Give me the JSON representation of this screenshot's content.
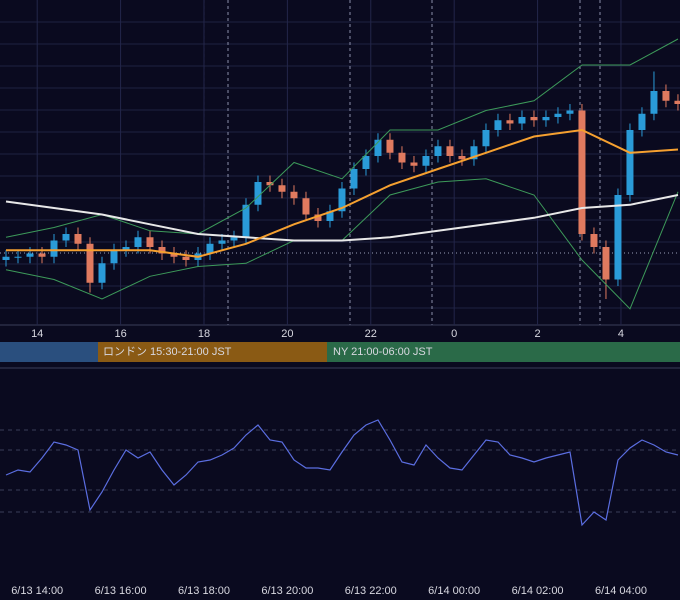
{
  "chart_data": [
    {
      "type": "candlestick",
      "up_color": "#2a9bd8",
      "down_color": "#e07a5f",
      "xlim": [
        -0.5,
        56.17
      ],
      "ylim": [
        0,
        100
      ],
      "xticks": [
        {
          "value": 2.6,
          "label": "14"
        },
        {
          "value": 9.55,
          "label": "16"
        },
        {
          "value": 16.5,
          "label": "18"
        },
        {
          "value": 23.45,
          "label": "20"
        },
        {
          "value": 30.4,
          "label": "22"
        },
        {
          "value": 37.35,
          "label": "0"
        },
        {
          "value": 44.3,
          "label": "2"
        },
        {
          "value": 51.25,
          "label": "4"
        }
      ],
      "open": [
        20,
        21,
        21,
        22,
        21,
        26,
        28,
        25,
        13,
        19,
        23,
        24,
        27,
        24,
        22,
        21,
        20,
        22,
        25,
        26,
        27,
        37,
        44,
        43,
        41,
        39,
        34,
        32,
        35,
        42,
        48,
        52,
        57,
        53,
        50,
        49,
        52,
        55,
        52,
        51,
        55,
        60,
        63,
        62,
        64,
        63,
        64,
        65,
        66,
        28,
        24,
        14,
        40,
        60,
        65,
        72,
        69
      ],
      "high": [
        23,
        23,
        24,
        24,
        28,
        30,
        30,
        27,
        21,
        25,
        26,
        29,
        29,
        26,
        24,
        23,
        24,
        27,
        28,
        29,
        39,
        46,
        46,
        45,
        43,
        41,
        36,
        37,
        44,
        50,
        54,
        59,
        59,
        55,
        52,
        54,
        57,
        57,
        54,
        57,
        62,
        65,
        65,
        66,
        66,
        66,
        67,
        68,
        68,
        30,
        26,
        42,
        62,
        67,
        78,
        74,
        71
      ],
      "low": [
        18,
        19,
        19,
        19,
        19,
        24,
        23,
        10,
        11,
        17,
        21,
        22,
        22,
        20,
        19,
        18,
        18,
        20,
        23,
        24,
        25,
        35,
        41,
        39,
        37,
        32,
        30,
        30,
        33,
        40,
        46,
        50,
        51,
        48,
        47,
        47,
        50,
        50,
        49,
        49,
        53,
        58,
        60,
        60,
        61,
        61,
        62,
        63,
        26,
        22,
        8,
        12,
        38,
        58,
        63,
        67,
        66
      ],
      "close": [
        21,
        21,
        22,
        21,
        26,
        28,
        25,
        13,
        19,
        23,
        24,
        27,
        24,
        22,
        21,
        20,
        22,
        25,
        26,
        27,
        37,
        44,
        43,
        41,
        39,
        34,
        32,
        35,
        42,
        48,
        52,
        57,
        53,
        50,
        49,
        52,
        55,
        52,
        51,
        55,
        60,
        63,
        62,
        64,
        63,
        64,
        65,
        66,
        28,
        24,
        14,
        40,
        60,
        65,
        72,
        69,
        68
      ],
      "series": [
        {
          "color": "#3d9a5a",
          "x": [
            0,
            4,
            8,
            12,
            16,
            20,
            24,
            28,
            32,
            36,
            40,
            44,
            48,
            52,
            56
          ],
          "values": [
            27,
            30,
            34,
            29,
            28,
            36,
            50,
            45,
            60,
            60,
            66,
            69,
            80,
            80,
            88
          ]
        },
        {
          "color": "#3d9a5a",
          "x": [
            0,
            4,
            8,
            12,
            16,
            20,
            24,
            28,
            32,
            36,
            40,
            44,
            48,
            52,
            56
          ],
          "values": [
            17,
            14,
            8,
            15,
            18,
            19,
            26,
            26,
            40,
            44,
            45,
            40,
            20,
            5,
            41
          ]
        },
        {
          "color": "#e8e8e8",
          "x": [
            0,
            4,
            8,
            12,
            16,
            20,
            24,
            28,
            32,
            36,
            40,
            44,
            48,
            52,
            56
          ],
          "values": [
            38,
            36,
            34,
            31,
            28,
            27,
            26,
            26,
            27,
            29,
            31,
            33,
            36,
            37,
            40
          ]
        },
        {
          "color": "#f5a030",
          "x": [
            0,
            4,
            8,
            12,
            16,
            20,
            24,
            28,
            32,
            36,
            40,
            44,
            48,
            52,
            56
          ],
          "values": [
            23,
            23,
            23,
            23,
            21,
            25,
            31,
            36,
            43,
            48,
            53,
            58,
            60,
            53,
            54
          ]
        }
      ],
      "sessions": [
        "ロンドン 15:30-21:00 JST",
        "NY 21:00-06:00 JST"
      ]
    },
    {
      "type": "line",
      "color": "#5b6ee1",
      "xlim": [
        -0.5,
        56.17
      ],
      "ylim": [
        0,
        100
      ],
      "xticks": [
        {
          "value": 2.6,
          "label": "6/13 14:00"
        },
        {
          "value": 9.55,
          "label": "6/13 16:00"
        },
        {
          "value": 16.5,
          "label": "6/13 18:00"
        },
        {
          "value": 23.45,
          "label": "6/13 20:00"
        },
        {
          "value": 30.4,
          "label": "6/13 22:00"
        },
        {
          "value": 37.35,
          "label": "6/14 00:00"
        },
        {
          "value": 44.3,
          "label": "6/14 02:00"
        },
        {
          "value": 51.25,
          "label": "6/14 04:00"
        }
      ],
      "values": [
        47.5,
        50,
        49,
        56,
        64,
        62.5,
        60,
        30,
        39,
        50,
        60,
        56,
        59,
        50,
        42.5,
        47.5,
        54,
        55,
        57.5,
        61,
        67.5,
        72.5,
        65,
        64,
        55,
        51,
        51,
        50,
        59,
        67.5,
        72.5,
        75,
        65,
        54,
        52.5,
        62.5,
        56,
        51,
        50,
        57.5,
        65,
        64,
        57.5,
        56,
        54,
        56,
        57.5,
        59,
        22.5,
        29,
        25,
        55,
        61,
        65,
        62.5,
        59,
        57.5
      ]
    }
  ]
}
